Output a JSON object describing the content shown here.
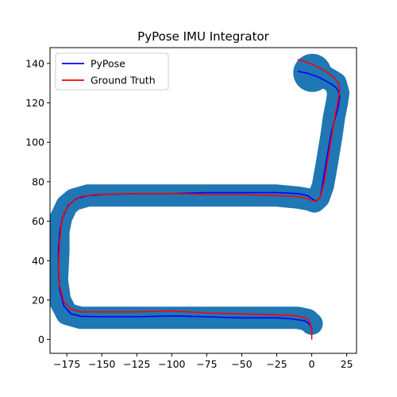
{
  "chart_data": {
    "type": "line",
    "title": "PyPose IMU Integrator",
    "xlabel": "",
    "ylabel": "",
    "xlim": [
      -187,
      32
    ],
    "ylim": [
      -7,
      148
    ],
    "xticks": [
      -175,
      -150,
      -125,
      -100,
      -75,
      -50,
      -25,
      0,
      25
    ],
    "yticks": [
      0,
      20,
      40,
      60,
      80,
      100,
      120,
      140
    ],
    "grid": false,
    "legend": "top-left",
    "uncertainty": {
      "color": "#1f77b4",
      "points": [
        [
          0,
          8
        ],
        [
          -3,
          10
        ],
        [
          -10,
          11
        ],
        [
          -25,
          11
        ],
        [
          -50,
          11
        ],
        [
          -75,
          11
        ],
        [
          -100,
          11
        ],
        [
          -125,
          11
        ],
        [
          -150,
          11
        ],
        [
          -165,
          11
        ],
        [
          -175,
          13
        ],
        [
          -180,
          20
        ],
        [
          -182,
          30
        ],
        [
          -181,
          45
        ],
        [
          -181,
          55
        ],
        [
          -179,
          62
        ],
        [
          -175,
          68
        ],
        [
          -170,
          71
        ],
        [
          -160,
          73
        ],
        [
          -150,
          73
        ],
        [
          -125,
          73
        ],
        [
          -100,
          73
        ],
        [
          -75,
          73
        ],
        [
          -50,
          73
        ],
        [
          -25,
          73
        ],
        [
          -10,
          72
        ],
        [
          -2,
          71
        ],
        [
          2,
          70
        ],
        [
          5,
          72
        ],
        [
          8,
          78
        ],
        [
          11,
          90
        ],
        [
          14,
          103
        ],
        [
          16,
          113
        ],
        [
          18,
          120
        ],
        [
          19,
          125
        ],
        [
          17,
          130
        ],
        [
          10,
          133
        ],
        [
          2,
          135
        ],
        [
          -3,
          136
        ]
      ]
    },
    "series": [
      {
        "name": "PyPose",
        "color": "#0000ff",
        "points": [
          [
            0,
            3
          ],
          [
            0,
            6
          ],
          [
            -2,
            8
          ],
          [
            -5,
            9.5
          ],
          [
            -15,
            10.5
          ],
          [
            -25,
            11
          ],
          [
            -50,
            11
          ],
          [
            -75,
            11.5
          ],
          [
            -100,
            12
          ],
          [
            -125,
            11.5
          ],
          [
            -150,
            11.5
          ],
          [
            -165,
            11.8
          ],
          [
            -172,
            13
          ],
          [
            -177,
            17
          ],
          [
            -180,
            25
          ],
          [
            -181,
            35
          ],
          [
            -181,
            45
          ],
          [
            -180,
            55
          ],
          [
            -178,
            62
          ],
          [
            -174,
            68
          ],
          [
            -168,
            71.5
          ],
          [
            -160,
            73
          ],
          [
            -150,
            73.5
          ],
          [
            -125,
            74
          ],
          [
            -100,
            74
          ],
          [
            -75,
            74.5
          ],
          [
            -50,
            74.5
          ],
          [
            -25,
            74.5
          ],
          [
            -10,
            74
          ],
          [
            -3,
            73
          ],
          [
            0,
            71.5
          ],
          [
            3,
            70
          ],
          [
            6,
            72
          ],
          [
            8,
            80
          ],
          [
            11,
            93
          ],
          [
            14,
            105
          ],
          [
            17,
            113
          ],
          [
            19,
            118
          ],
          [
            20,
            123
          ],
          [
            19,
            126
          ],
          [
            17,
            128
          ],
          [
            13,
            130
          ],
          [
            5,
            133
          ],
          [
            -3,
            135
          ],
          [
            -10,
            136
          ]
        ]
      },
      {
        "name": "Ground Truth",
        "color": "#ff0000",
        "points": [
          [
            0,
            0
          ],
          [
            0,
            5
          ],
          [
            -1,
            8
          ],
          [
            -3,
            10.5
          ],
          [
            -10,
            12
          ],
          [
            -25,
            12.5
          ],
          [
            -50,
            13
          ],
          [
            -75,
            13.5
          ],
          [
            -100,
            14.5
          ],
          [
            -125,
            14
          ],
          [
            -150,
            14
          ],
          [
            -165,
            14
          ],
          [
            -172,
            15.5
          ],
          [
            -177,
            19
          ],
          [
            -180,
            27
          ],
          [
            -181,
            37
          ],
          [
            -180,
            50
          ],
          [
            -179,
            58
          ],
          [
            -177,
            64
          ],
          [
            -172,
            69.5
          ],
          [
            -165,
            72.5
          ],
          [
            -155,
            73.5
          ],
          [
            -125,
            74
          ],
          [
            -100,
            74
          ],
          [
            -75,
            73.5
          ],
          [
            -50,
            73.5
          ],
          [
            -25,
            73
          ],
          [
            -10,
            72.5
          ],
          [
            -3,
            71.5
          ],
          [
            0,
            70.5
          ],
          [
            3,
            70
          ],
          [
            6,
            72
          ],
          [
            9,
            80
          ],
          [
            12,
            93
          ],
          [
            15,
            106
          ],
          [
            17,
            115
          ],
          [
            19,
            122
          ],
          [
            20,
            127
          ],
          [
            19,
            130
          ],
          [
            16,
            133
          ],
          [
            10,
            136
          ],
          [
            2,
            139
          ],
          [
            -5,
            141
          ],
          [
            -10,
            142
          ]
        ]
      }
    ]
  }
}
